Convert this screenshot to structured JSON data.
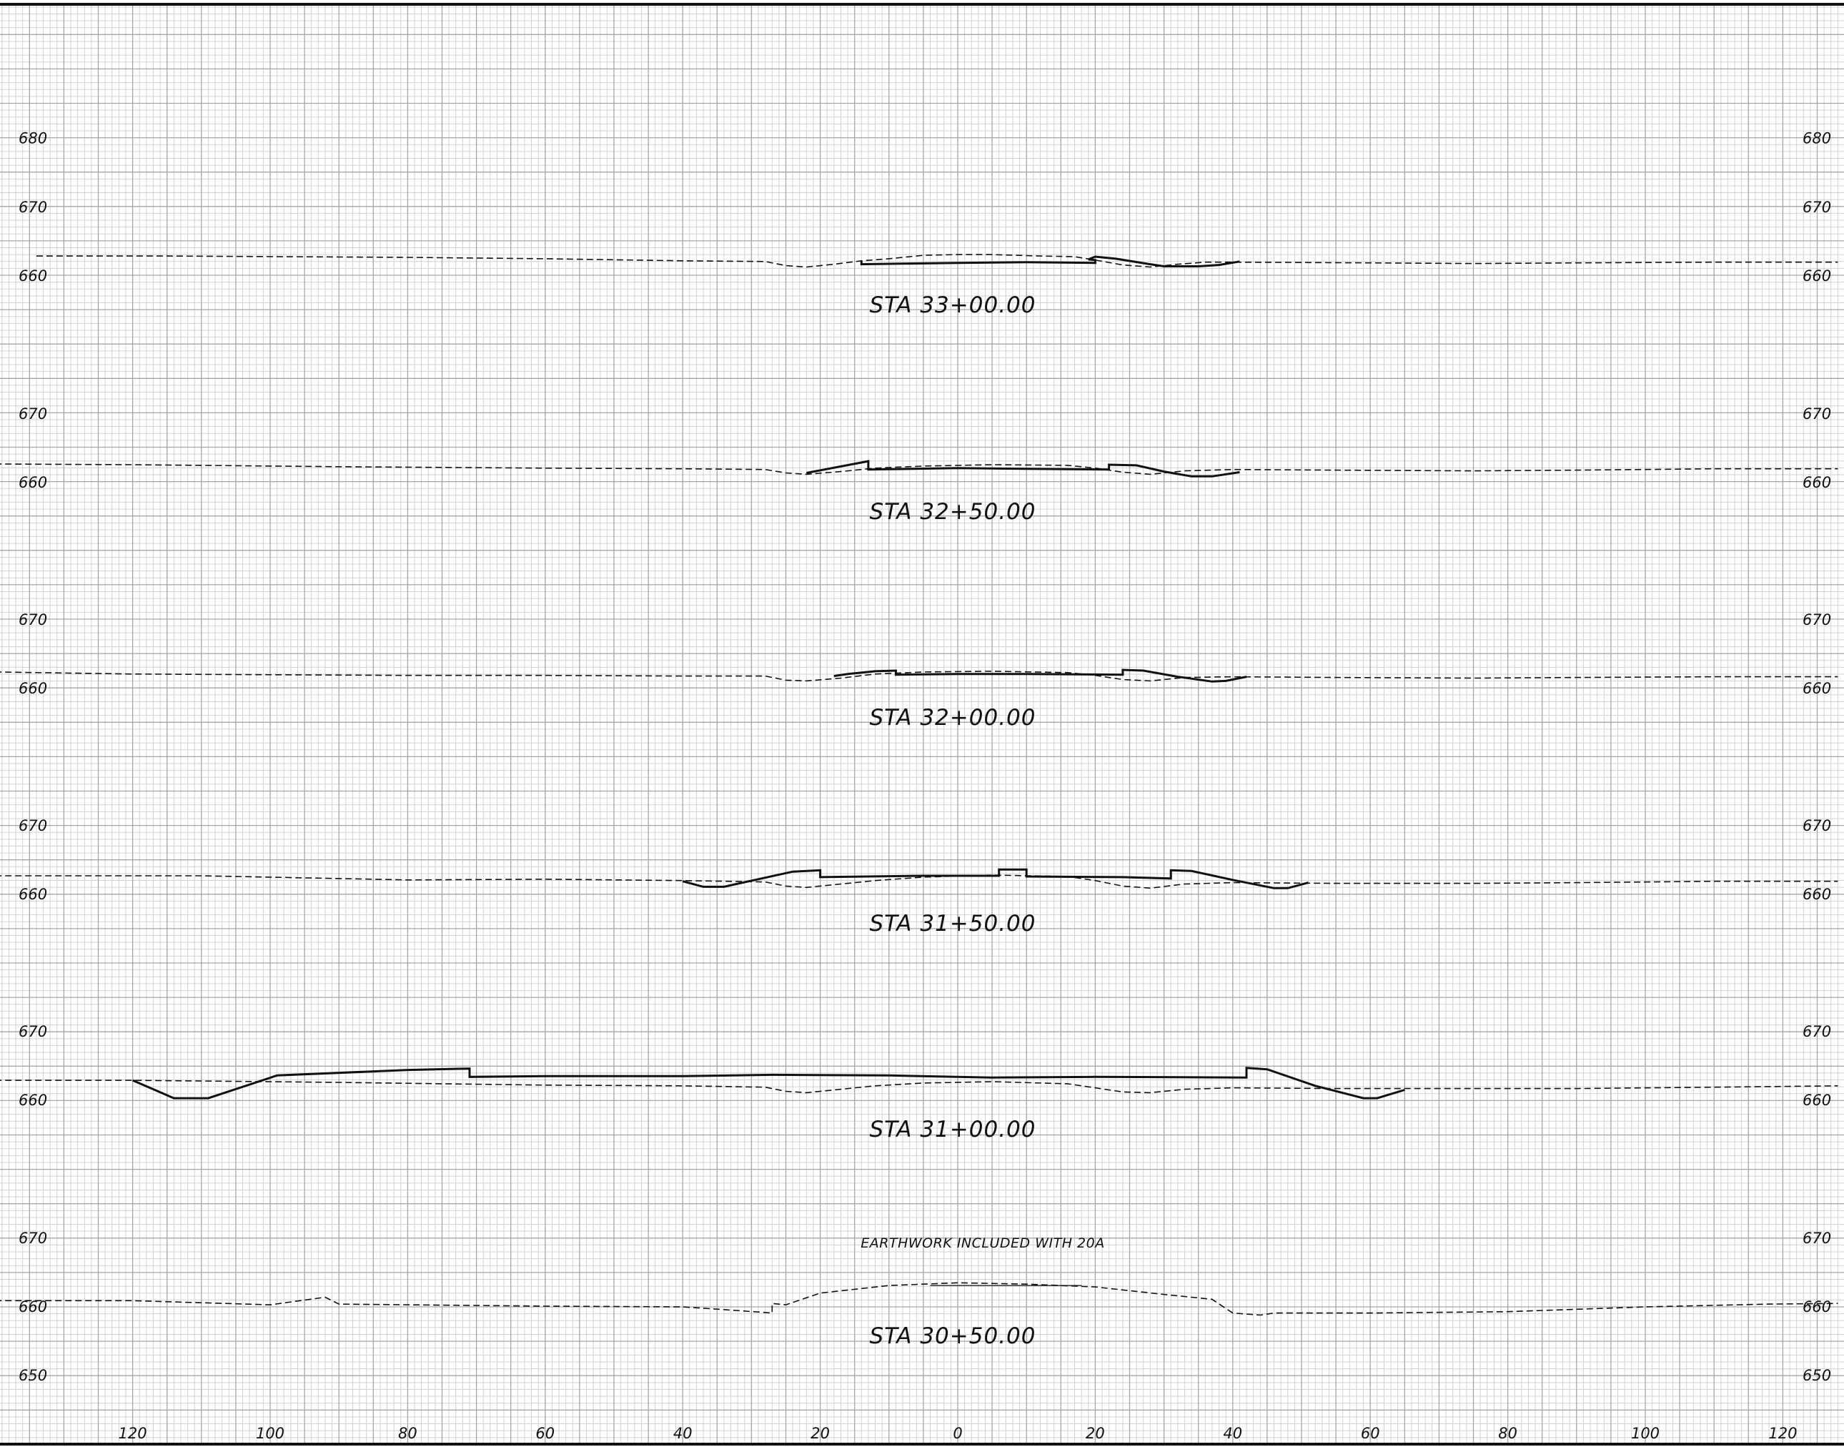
{
  "colors": {
    "background": "#ffffff",
    "grid_minor": "#d2d2d2",
    "grid_major": "#a6a6a6",
    "ink": "#111111"
  },
  "x_axis": {
    "labels": [
      "120",
      "100",
      "80",
      "60",
      "40",
      "20",
      "0",
      "20",
      "40",
      "60",
      "80",
      "100",
      "120"
    ]
  },
  "sections": [
    {
      "id": "sta-33-00",
      "station": "STA 33+00.00",
      "elevation_labels": [
        "680",
        "670",
        "660"
      ],
      "elevations": [
        680,
        670,
        660
      ],
      "note": "",
      "existing_ground": [
        [
          -134,
          662.8
        ],
        [
          -115,
          662.8
        ],
        [
          -80,
          662.6
        ],
        [
          -60,
          662.4
        ],
        [
          -40,
          662.1
        ],
        [
          -28,
          662.0
        ],
        [
          -25,
          661.4
        ],
        [
          -22,
          661.2
        ],
        [
          -18,
          661.6
        ],
        [
          -14,
          662.1
        ],
        [
          -10,
          662.4
        ],
        [
          -5,
          662.9
        ],
        [
          0,
          663.0
        ],
        [
          5,
          663.0
        ],
        [
          12,
          662.8
        ],
        [
          17,
          662.7
        ],
        [
          20,
          662.2
        ],
        [
          24,
          661.5
        ],
        [
          28,
          661.2
        ],
        [
          32,
          661.6
        ],
        [
          36,
          661.9
        ],
        [
          40,
          661.9
        ],
        [
          60,
          661.8
        ],
        [
          75,
          661.7
        ],
        [
          90,
          661.8
        ],
        [
          110,
          661.9
        ],
        [
          128,
          661.9
        ]
      ],
      "proposed": [
        [
          -14,
          662.1
        ],
        [
          -14,
          661.6
        ],
        [
          0,
          661.8
        ],
        [
          10,
          661.9
        ],
        [
          20,
          661.8
        ],
        [
          20,
          662.2
        ],
        [
          19,
          662.3
        ],
        [
          20,
          662.7
        ],
        [
          23,
          662.4
        ],
        [
          28,
          661.6
        ],
        [
          30,
          661.3
        ],
        [
          35,
          661.3
        ],
        [
          38,
          661.5
        ],
        [
          41,
          662.0
        ]
      ]
    },
    {
      "id": "sta-32-50",
      "station": "STA 32+50.00",
      "elevation_labels": [
        "670",
        "660"
      ],
      "elevations": [
        670,
        660
      ],
      "note": "",
      "existing_ground": [
        [
          -140,
          662.6
        ],
        [
          -120,
          662.5
        ],
        [
          -90,
          662.2
        ],
        [
          -60,
          662.0
        ],
        [
          -40,
          661.9
        ],
        [
          -28,
          661.8
        ],
        [
          -25,
          661.3
        ],
        [
          -22,
          661.1
        ],
        [
          -17,
          661.5
        ],
        [
          -12,
          662.0
        ],
        [
          -5,
          662.3
        ],
        [
          5,
          662.5
        ],
        [
          16,
          662.4
        ],
        [
          20,
          662.0
        ],
        [
          24,
          661.4
        ],
        [
          28,
          661.1
        ],
        [
          33,
          661.6
        ],
        [
          40,
          661.8
        ],
        [
          55,
          661.7
        ],
        [
          75,
          661.6
        ],
        [
          90,
          661.7
        ],
        [
          110,
          661.9
        ],
        [
          128,
          661.9
        ]
      ],
      "proposed": [
        [
          -22,
          661.3
        ],
        [
          -13,
          663.0
        ],
        [
          -13,
          661.8
        ],
        [
          0,
          662.0
        ],
        [
          10,
          661.9
        ],
        [
          22,
          661.8
        ],
        [
          22,
          662.5
        ],
        [
          26,
          662.4
        ],
        [
          30,
          661.5
        ],
        [
          34,
          660.8
        ],
        [
          37,
          660.8
        ],
        [
          41,
          661.4
        ]
      ]
    },
    {
      "id": "sta-32-00",
      "station": "STA 32+00.00",
      "elevation_labels": [
        "670",
        "660"
      ],
      "elevations": [
        670,
        660
      ],
      "note": "",
      "existing_ground": [
        [
          -140,
          662.3
        ],
        [
          -120,
          662.0
        ],
        [
          -80,
          661.8
        ],
        [
          -60,
          661.8
        ],
        [
          -40,
          661.7
        ],
        [
          -28,
          661.7
        ],
        [
          -25,
          661.1
        ],
        [
          -22,
          661.0
        ],
        [
          -17,
          661.4
        ],
        [
          -12,
          662.0
        ],
        [
          -5,
          662.3
        ],
        [
          5,
          662.4
        ],
        [
          16,
          662.2
        ],
        [
          20,
          661.8
        ],
        [
          24,
          661.2
        ],
        [
          28,
          661.0
        ],
        [
          33,
          661.5
        ],
        [
          40,
          661.6
        ],
        [
          55,
          661.5
        ],
        [
          75,
          661.4
        ],
        [
          90,
          661.5
        ],
        [
          110,
          661.6
        ],
        [
          128,
          661.6
        ]
      ],
      "proposed": [
        [
          -18,
          661.7
        ],
        [
          -16,
          662.0
        ],
        [
          -12,
          662.4
        ],
        [
          -9,
          662.5
        ],
        [
          -9,
          661.9
        ],
        [
          0,
          662.0
        ],
        [
          10,
          662.0
        ],
        [
          24,
          661.9
        ],
        [
          24,
          662.6
        ],
        [
          27,
          662.5
        ],
        [
          32,
          661.6
        ],
        [
          37,
          660.9
        ],
        [
          39,
          661.0
        ],
        [
          42,
          661.6
        ]
      ]
    },
    {
      "id": "sta-31-50",
      "station": "STA 31+50.00",
      "elevation_labels": [
        "670",
        "660"
      ],
      "elevations": [
        670,
        660
      ],
      "note": "",
      "existing_ground": [
        [
          -140,
          662.6
        ],
        [
          -110,
          662.6
        ],
        [
          -80,
          662.0
        ],
        [
          -60,
          662.1
        ],
        [
          -40,
          661.9
        ],
        [
          -28,
          661.7
        ],
        [
          -25,
          661.1
        ],
        [
          -22,
          660.9
        ],
        [
          -17,
          661.4
        ],
        [
          -12,
          661.9
        ],
        [
          -5,
          662.4
        ],
        [
          5,
          662.7
        ],
        [
          16,
          662.5
        ],
        [
          20,
          661.9
        ],
        [
          24,
          661.1
        ],
        [
          28,
          660.8
        ],
        [
          33,
          661.4
        ],
        [
          40,
          661.6
        ],
        [
          55,
          661.5
        ],
        [
          75,
          661.5
        ],
        [
          90,
          661.6
        ],
        [
          110,
          661.8
        ],
        [
          128,
          661.8
        ]
      ],
      "proposed": [
        [
          -40,
          661.8
        ],
        [
          -37,
          661.0
        ],
        [
          -34,
          661.0
        ],
        [
          -24,
          663.2
        ],
        [
          -20,
          663.4
        ],
        [
          -20,
          662.4
        ],
        [
          -5,
          662.6
        ],
        [
          6,
          662.6
        ],
        [
          6,
          663.5
        ],
        [
          10,
          663.5
        ],
        [
          10,
          662.5
        ],
        [
          24,
          662.4
        ],
        [
          31,
          662.2
        ],
        [
          31,
          663.4
        ],
        [
          34,
          663.3
        ],
        [
          40,
          662.0
        ],
        [
          46,
          660.8
        ],
        [
          48,
          660.8
        ],
        [
          51,
          661.6
        ]
      ]
    },
    {
      "id": "sta-31-00",
      "station": "STA 31+00.00",
      "elevation_labels": [
        "670",
        "660"
      ],
      "elevations": [
        670,
        660
      ],
      "note": "",
      "existing_ground": [
        [
          -140,
          662.8
        ],
        [
          -120,
          662.8
        ],
        [
          -90,
          662.5
        ],
        [
          -60,
          662.1
        ],
        [
          -40,
          662.0
        ],
        [
          -28,
          661.8
        ],
        [
          -25,
          661.2
        ],
        [
          -22,
          661.0
        ],
        [
          -17,
          661.5
        ],
        [
          -12,
          662.0
        ],
        [
          -5,
          662.4
        ],
        [
          5,
          662.6
        ],
        [
          16,
          662.3
        ],
        [
          20,
          661.7
        ],
        [
          24,
          661.1
        ],
        [
          28,
          661.0
        ],
        [
          33,
          661.5
        ],
        [
          40,
          661.7
        ],
        [
          55,
          661.6
        ],
        [
          75,
          661.6
        ],
        [
          90,
          661.6
        ],
        [
          110,
          661.8
        ],
        [
          128,
          662.0
        ]
      ],
      "proposed": [
        [
          -120,
          662.8
        ],
        [
          -114,
          660.2
        ],
        [
          -109,
          660.2
        ],
        [
          -99,
          663.5
        ],
        [
          -80,
          664.3
        ],
        [
          -71,
          664.5
        ],
        [
          -71,
          663.3
        ],
        [
          -60,
          663.4
        ],
        [
          -40,
          663.4
        ],
        [
          -27,
          663.6
        ],
        [
          -10,
          663.5
        ],
        [
          5,
          663.2
        ],
        [
          20,
          663.3
        ],
        [
          42,
          663.2
        ],
        [
          42,
          664.6
        ],
        [
          45,
          664.4
        ],
        [
          52,
          662.0
        ],
        [
          59,
          660.2
        ],
        [
          61,
          660.2
        ],
        [
          65,
          661.4
        ]
      ]
    },
    {
      "id": "sta-30-50",
      "station": "STA 30+50.00",
      "elevation_labels": [
        "670",
        "660",
        "650"
      ],
      "elevations": [
        670,
        660,
        650
      ],
      "note": "EARTHWORK INCLUDED WITH 20A",
      "existing_ground": [
        [
          -140,
          660.8
        ],
        [
          -120,
          660.8
        ],
        [
          -100,
          660.2
        ],
        [
          -92,
          661.3
        ],
        [
          -90,
          660.3
        ],
        [
          -60,
          660.0
        ],
        [
          -40,
          659.9
        ],
        [
          -34,
          659.5
        ],
        [
          -27,
          659.0
        ],
        [
          -27,
          660.4
        ],
        [
          -25,
          660.2
        ],
        [
          -20,
          661.9
        ],
        [
          -10,
          663.0
        ],
        [
          0,
          663.4
        ],
        [
          10,
          663.2
        ],
        [
          20,
          662.8
        ],
        [
          30,
          661.7
        ],
        [
          37,
          661.0
        ],
        [
          40,
          659.0
        ],
        [
          44,
          658.7
        ],
        [
          46,
          659.0
        ],
        [
          60,
          659.0
        ],
        [
          80,
          659.2
        ],
        [
          100,
          659.9
        ],
        [
          118,
          660.3
        ],
        [
          128,
          660.4
        ]
      ],
      "proposed": []
    }
  ]
}
